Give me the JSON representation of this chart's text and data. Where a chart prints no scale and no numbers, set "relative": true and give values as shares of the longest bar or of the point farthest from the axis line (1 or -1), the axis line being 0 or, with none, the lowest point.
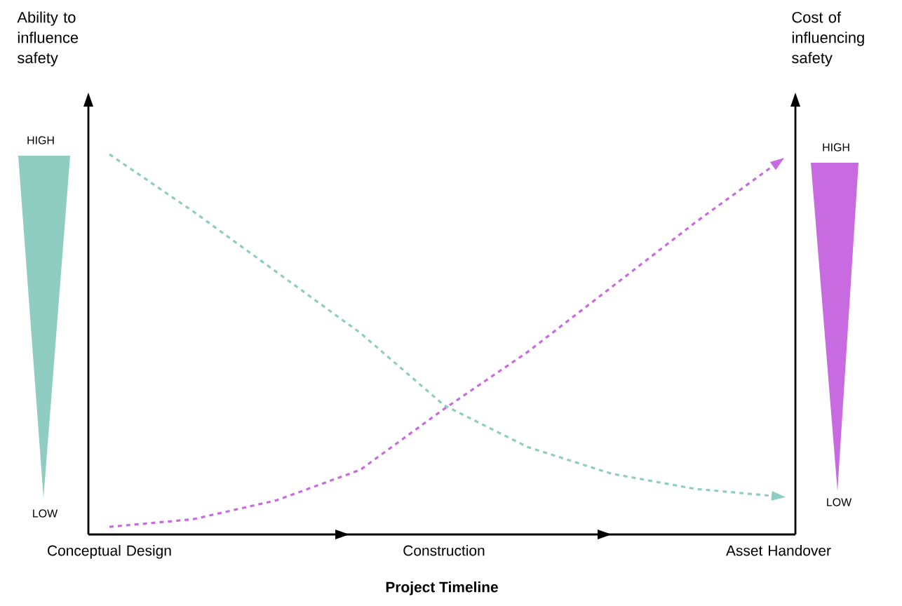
{
  "chart_data": {
    "type": "line",
    "relative": true,
    "line_style": "dashed",
    "marker": "none",
    "xlabel": "Project Timeline",
    "categories": [
      "Conceptual Design",
      null,
      null,
      null,
      "Construction",
      null,
      null,
      null,
      "Asset Handover"
    ],
    "series": [
      {
        "color": "#8fcdc0",
        "values": [
          1,
          0.85,
          0.69,
          0.53,
          0.34,
          0.23,
          0.16,
          0.12,
          0.1
        ]
      },
      {
        "color": "#c86be0",
        "values": [
          0.02,
          0.04,
          0.09,
          0.17,
          0.33,
          0.48,
          0.65,
          0.82,
          0.98
        ]
      }
    ],
    "annotations": [
      "Ability to influence safety",
      "Cost of influencing safety",
      "HIGH",
      "LOW",
      "HIGH",
      "LOW"
    ]
  }
}
